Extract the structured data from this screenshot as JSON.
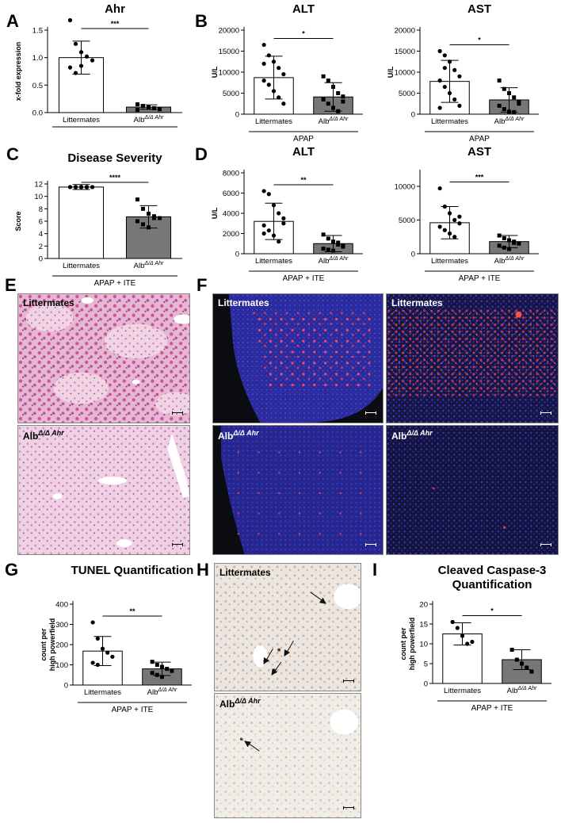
{
  "panels": {
    "A": "A",
    "B": "B",
    "C": "C",
    "D": "D",
    "E": "E",
    "F": "F",
    "G": "G",
    "H": "H",
    "I": "I"
  },
  "groups": {
    "littermates": "Littermates",
    "alb_base": "Alb",
    "alb_sup": "Δ/Δ Ahr"
  },
  "micrographs": {
    "e_top_label": "Littermates",
    "e_bottom_label": "Alb",
    "f_tl_label": "Littermates",
    "f_tr_label": "Littermates",
    "f_bl_label": "Alb",
    "f_br_label": "Alb",
    "h_top_label": "Littermates",
    "h_bottom_label": "Alb",
    "label_sup": "Δ/Δ Ahr",
    "he_color": "#d98ab7",
    "dapi_color": "#2a2ab0",
    "signal_color": "#ff3030",
    "ihc_color": "#efeae4"
  },
  "chart_data": [
    {
      "id": "A",
      "type": "bar",
      "title": "Ahr",
      "ylabel": "x-fold expression",
      "ylim": [
        0,
        1.5
      ],
      "yticks": [
        "0.0",
        "0.5",
        "1.0",
        "1.5"
      ],
      "yticks_values": [
        0,
        0.5,
        1.0,
        1.5
      ],
      "categories": [
        "Littermates",
        "AlbΔ/ΔAhr"
      ],
      "values": [
        1.0,
        0.1
      ],
      "errors": [
        0.3,
        0.04
      ],
      "points": [
        [
          1.68,
          1.25,
          1.1,
          1.02,
          0.95,
          0.82,
          0.72,
          0.85
        ],
        [
          0.15,
          0.12,
          0.1,
          0.08,
          0.06,
          0.05,
          0.12,
          0.09
        ]
      ],
      "significance": "***",
      "group_label": "",
      "colors": [
        "#ffffff",
        "#777777"
      ]
    },
    {
      "id": "B1",
      "type": "bar",
      "title": "ALT",
      "ylabel": "U/L",
      "ylim": [
        0,
        20000
      ],
      "yticks": [
        "0",
        "5000",
        "10000",
        "15000",
        "20000"
      ],
      "yticks_values": [
        0,
        5000,
        10000,
        15000,
        20000
      ],
      "categories": [
        "Littermates",
        "AlbΔ/ΔAhr"
      ],
      "values": [
        8700,
        4100
      ],
      "errors": [
        5100,
        3400
      ],
      "points": [
        [
          16500,
          14000,
          12500,
          11000,
          9500,
          8000,
          7000,
          5500,
          4000,
          2500,
          12000
        ],
        [
          9000,
          8000,
          6500,
          5000,
          4200,
          3500,
          2500,
          1500,
          700,
          3000
        ]
      ],
      "significance": "*",
      "group_label": "APAP",
      "colors": [
        "#ffffff",
        "#777777"
      ]
    },
    {
      "id": "B2",
      "type": "bar",
      "title": "AST",
      "ylabel": "U/L",
      "ylim": [
        0,
        20000
      ],
      "yticks": [
        "0",
        "5000",
        "10000",
        "15000",
        "20000"
      ],
      "yticks_values": [
        0,
        5000,
        10000,
        15000,
        20000
      ],
      "categories": [
        "Littermates",
        "AlbΔ/ΔAhr"
      ],
      "values": [
        7800,
        3400
      ],
      "errors": [
        5000,
        2900
      ],
      "points": [
        [
          15000,
          14000,
          12500,
          10500,
          9000,
          8000,
          6500,
          5000,
          3500,
          2000,
          1500,
          11000
        ],
        [
          8000,
          6000,
          5000,
          4000,
          3000,
          2000,
          1200,
          600,
          500,
          2500
        ]
      ],
      "significance": "*",
      "group_label": "APAP",
      "colors": [
        "#ffffff",
        "#777777"
      ]
    },
    {
      "id": "C",
      "type": "bar",
      "title": "Disease Severity",
      "ylabel": "Score",
      "ylim": [
        0,
        12
      ],
      "yticks": [
        "0",
        "2",
        "4",
        "6",
        "8",
        "10",
        "12"
      ],
      "yticks_values": [
        0,
        2,
        4,
        6,
        8,
        10,
        12
      ],
      "categories": [
        "Littermates",
        "AlbΔ/ΔAhr"
      ],
      "values": [
        11.5,
        6.7
      ],
      "errors": [
        0.4,
        1.8
      ],
      "points": [
        [
          11.5,
          11.5,
          11.5,
          11.5,
          11.5,
          11.5,
          11.5,
          11.5,
          11.5,
          11.5
        ],
        [
          9.5,
          8.0,
          7.2,
          6.8,
          6.5,
          6.0,
          5.5,
          5.0,
          6.5
        ]
      ],
      "significance": "****",
      "group_label": "APAP + ITE",
      "colors": [
        "#ffffff",
        "#777777"
      ]
    },
    {
      "id": "D1",
      "type": "bar",
      "title": "ALT",
      "ylabel": "U/L",
      "ylim": [
        0,
        8000
      ],
      "yticks": [
        "0",
        "2000",
        "4000",
        "6000",
        "8000"
      ],
      "yticks_values": [
        0,
        2000,
        4000,
        6000,
        8000
      ],
      "categories": [
        "Littermates",
        "AlbΔ/ΔAhr"
      ],
      "values": [
        3200,
        1000
      ],
      "errors": [
        1800,
        800
      ],
      "points": [
        [
          6200,
          5900,
          4800,
          4000,
          3500,
          2800,
          2300,
          1800,
          1200,
          3000,
          2000
        ],
        [
          1900,
          1500,
          1200,
          900,
          700,
          500,
          400,
          300,
          1100,
          800
        ]
      ],
      "significance": "**",
      "group_label": "APAP + ITE",
      "colors": [
        "#ffffff",
        "#777777"
      ]
    },
    {
      "id": "D2",
      "type": "bar",
      "title": "AST",
      "ylabel": "",
      "ylim": [
        0,
        12000
      ],
      "yticks": [
        "0",
        "5000",
        "10000"
      ],
      "yticks_values": [
        0,
        5000,
        10000
      ],
      "categories": [
        "Littermates",
        "AlbΔ/ΔAhr"
      ],
      "values": [
        4600,
        1800
      ],
      "errors": [
        2400,
        900
      ],
      "points": [
        [
          9700,
          7000,
          6000,
          5000,
          4500,
          4000,
          3500,
          3000,
          2500,
          5500
        ],
        [
          2700,
          2300,
          2000,
          1800,
          1500,
          1200,
          900,
          700,
          1600
        ]
      ],
      "significance": "***",
      "group_label": "APAP + ITE",
      "colors": [
        "#ffffff",
        "#777777"
      ]
    },
    {
      "id": "G",
      "type": "bar",
      "title": "TUNEL Quantification",
      "ylabel": "count per high powerfield",
      "ylim": [
        0,
        400
      ],
      "yticks": [
        "0",
        "100",
        "200",
        "300",
        "400"
      ],
      "yticks_values": [
        0,
        100,
        200,
        300,
        400
      ],
      "categories": [
        "Littermates",
        "AlbΔ/ΔAhr"
      ],
      "values": [
        168,
        80
      ],
      "errors": [
        72,
        33
      ],
      "points": [
        [
          310,
          230,
          180,
          160,
          140,
          110,
          100
        ],
        [
          115,
          100,
          90,
          80,
          70,
          60,
          50,
          40
        ]
      ],
      "significance": "**",
      "group_label": "APAP + ITE",
      "colors": [
        "#ffffff",
        "#777777"
      ]
    },
    {
      "id": "I",
      "type": "bar",
      "title": "Cleaved Caspase-3 Quantification",
      "ylabel": "count per high powerfield",
      "ylim": [
        0,
        20
      ],
      "yticks": [
        "0",
        "5",
        "10",
        "15",
        "20"
      ],
      "yticks_values": [
        0,
        5,
        10,
        15,
        20
      ],
      "categories": [
        "Littermates",
        "AlbΔ/ΔAhr"
      ],
      "values": [
        12.5,
        6.0
      ],
      "errors": [
        2.8,
        2.5
      ],
      "points": [
        [
          15.5,
          14,
          12,
          10,
          10.5
        ],
        [
          8.5,
          6,
          5,
          4,
          3
        ]
      ],
      "significance": "*",
      "group_label": "APAP + ITE",
      "colors": [
        "#ffffff",
        "#777777"
      ]
    }
  ]
}
